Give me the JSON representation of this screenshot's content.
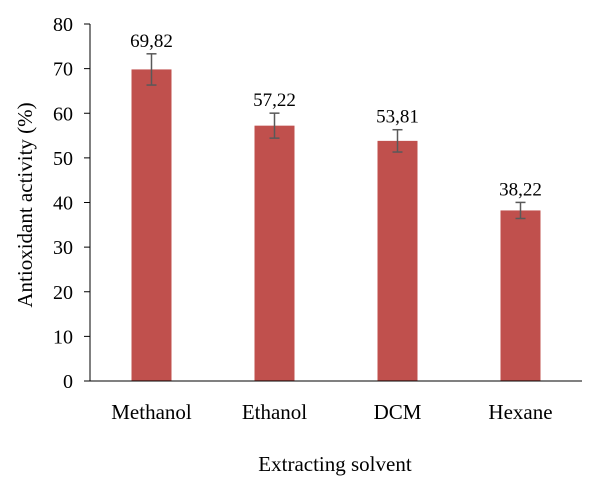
{
  "chart_data": {
    "type": "bar",
    "categories": [
      "Methanol",
      "Ethanol",
      "DCM",
      "Hexane"
    ],
    "values": [
      69.82,
      57.22,
      53.81,
      38.22
    ],
    "errors": [
      3.5,
      2.8,
      2.5,
      1.8
    ],
    "data_labels": [
      "69,82",
      "57,22",
      "53,81",
      "38,22"
    ],
    "xlabel": "Extracting solvent",
    "ylabel": "Antioxidant activity (%)",
    "ylim": [
      0,
      80
    ],
    "yticks": [
      0,
      10,
      20,
      30,
      40,
      50,
      60,
      70,
      80
    ],
    "grid": false,
    "legend": "none",
    "colors": {
      "bar": "#c0504d",
      "error_bar": "#595959",
      "axis": "#000000"
    }
  }
}
